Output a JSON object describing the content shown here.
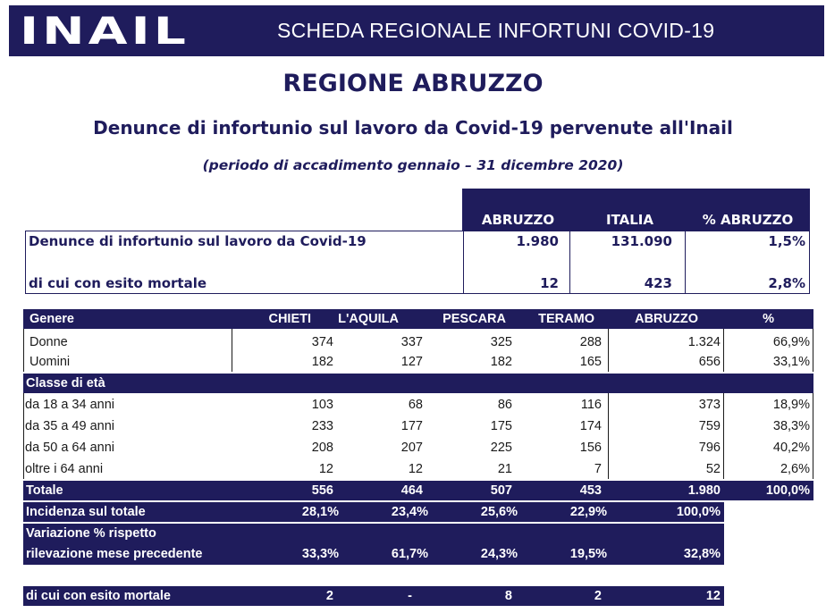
{
  "header": {
    "logo_text": "INAIL",
    "title": "SCHEDA REGIONALE INFORTUNI COVID-19"
  },
  "region_title": "REGIONE ABRUZZO",
  "subtitle": "Denunce di infortunio sul lavoro da Covid-19 pervenute all'Inail",
  "period": "(periodo di accadimento gennaio – 31 dicembre 2020)",
  "summary": {
    "headers": [
      "ABRUZZO",
      "ITALIA",
      "% ABRUZZO"
    ],
    "rows": [
      {
        "label": "Denunce di infortunio sul lavoro da Covid-19",
        "values": [
          "1.980",
          "131.090",
          "1,5%"
        ]
      },
      {
        "label": "di cui con esito mortale",
        "values": [
          "12",
          "423",
          "2,8%"
        ]
      }
    ]
  },
  "main_table": {
    "header": [
      "Genere",
      "CHIETI",
      "L'AQUILA",
      "PESCARA",
      "TERAMO",
      "ABRUZZO",
      "%"
    ],
    "genere_rows": [
      {
        "label": "Donne",
        "values": [
          "374",
          "337",
          "325",
          "288",
          "1.324",
          "66,9%"
        ]
      },
      {
        "label": "Uomini",
        "values": [
          "182",
          "127",
          "182",
          "165",
          "656",
          "33,1%"
        ]
      }
    ],
    "age_section_label": "Classe di età",
    "age_rows": [
      {
        "label": "da 18 a 34 anni",
        "values": [
          "103",
          "68",
          "86",
          "116",
          "373",
          "18,9%"
        ]
      },
      {
        "label": "da 35 a 49 anni",
        "values": [
          "233",
          "177",
          "175",
          "174",
          "759",
          "38,3%"
        ]
      },
      {
        "label": "da 50 a 64 anni",
        "values": [
          "208",
          "207",
          "225",
          "156",
          "796",
          "40,2%"
        ]
      },
      {
        "label": "oltre i 64 anni",
        "values": [
          "12",
          "12",
          "21",
          "7",
          "52",
          "2,6%"
        ]
      }
    ],
    "totale": {
      "label": "Totale",
      "values": [
        "556",
        "464",
        "507",
        "453",
        "1.980",
        "100,0%"
      ]
    },
    "incidenza": {
      "label": "Incidenza sul totale",
      "values": [
        "28,1%",
        "23,4%",
        "25,6%",
        "22,9%",
        "100,0%"
      ]
    },
    "variazione": {
      "label_line1": "Variazione % rispetto",
      "label_line2": "rilevazione mese precedente",
      "values": [
        "33,3%",
        "61,7%",
        "24,3%",
        "19,5%",
        "32,8%"
      ]
    },
    "mortale": {
      "label": "di cui con esito mortale",
      "values": [
        "2",
        "-",
        "8",
        "2",
        "12"
      ]
    }
  }
}
